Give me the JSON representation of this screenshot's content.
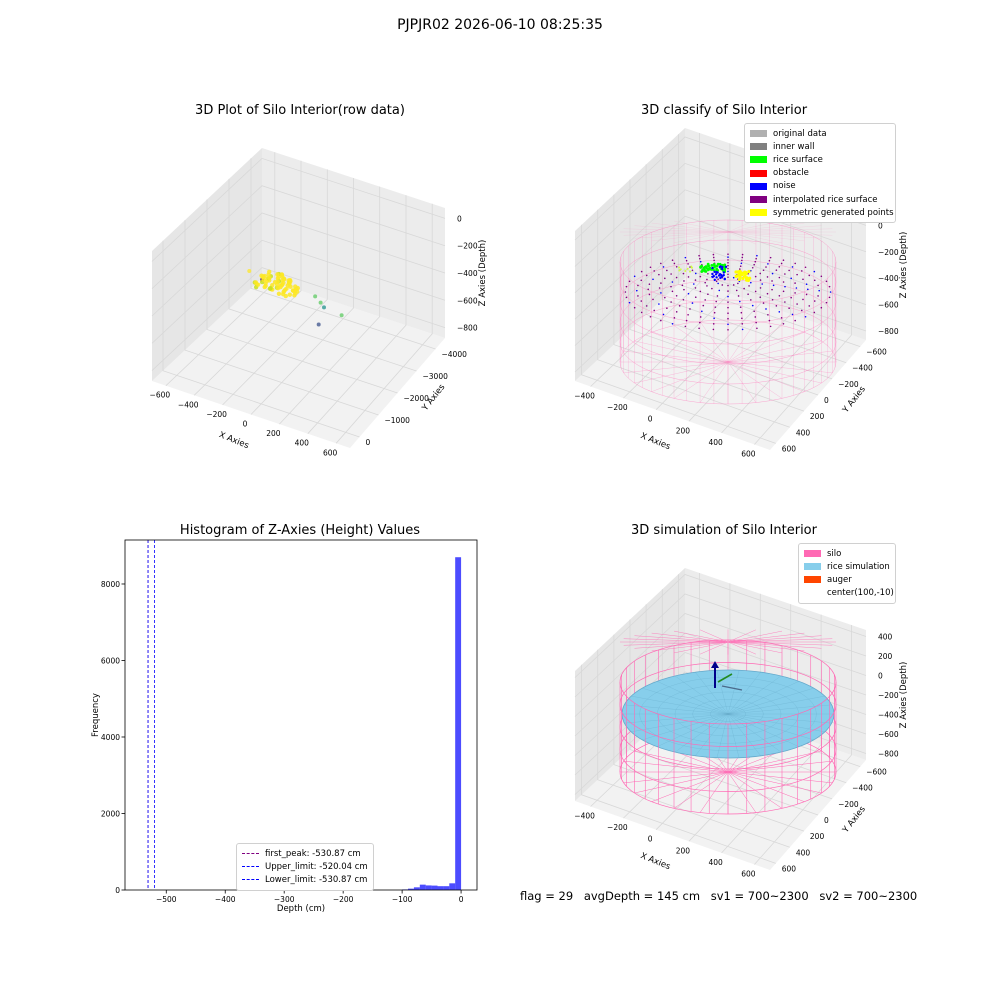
{
  "suptitle": "PJPJR02 2026-06-10 08:25:35",
  "panels": {
    "raw": {
      "title": "3D Plot of Silo Interior(row data)",
      "xlabel": "X Axies",
      "ylabel": "Y Axies",
      "zlabel": "Z Axies (Depth)",
      "xticks": [
        "−600",
        "−400",
        "−200",
        "0",
        "200",
        "400",
        "600"
      ],
      "yticks": [
        "0",
        "−1000",
        "−2000",
        "−3000",
        "−4000"
      ],
      "zticks": [
        "0",
        "−200",
        "−400",
        "−600",
        "−800"
      ]
    },
    "classify": {
      "title": "3D classify of Silo Interior",
      "xlabel": "X Axies",
      "ylabel": "Y Axies",
      "zlabel": "Z Axies (Depth)",
      "xticks": [
        "−400",
        "−200",
        "0",
        "200",
        "400",
        "600"
      ],
      "yticks": [
        "600",
        "400",
        "200",
        "0",
        "−200",
        "−400",
        "−600"
      ],
      "zticks": [
        "200",
        "0",
        "−200",
        "−400",
        "−600",
        "−800"
      ],
      "legend": [
        {
          "label": "original data",
          "color": "#b0b0b0"
        },
        {
          "label": "inner wall",
          "color": "#808080"
        },
        {
          "label": "rice surface",
          "color": "#00ff00"
        },
        {
          "label": "obstacle",
          "color": "#ff0000"
        },
        {
          "label": "noise",
          "color": "#0000ff"
        },
        {
          "label": "interpolated rice surface",
          "color": "#800080"
        },
        {
          "label": "symmetric generated points",
          "color": "#ffff00"
        }
      ]
    },
    "histogram": {
      "title": "Histogram of Z-Axies (Height) Values",
      "xlabel": "Depth (cm)",
      "ylabel": "Frequency",
      "legend": [
        {
          "label": "first_peak: -530.87 cm",
          "color": "#800080"
        },
        {
          "label": "Upper_limit: -520.04 cm",
          "color": "#0000ff"
        },
        {
          "label": "Lower_limit: -530.87 cm",
          "color": "#0000ff"
        }
      ]
    },
    "simulation": {
      "title": "3D simulation of Silo Interior",
      "xlabel": "X Axies",
      "ylabel": "Y Axies",
      "zlabel": "Z Axies (Depth)",
      "xticks": [
        "−400",
        "−200",
        "0",
        "200",
        "400",
        "600"
      ],
      "yticks": [
        "600",
        "400",
        "200",
        "0",
        "−200",
        "−400",
        "−600"
      ],
      "zticks": [
        "400",
        "200",
        "0",
        "−200",
        "−400",
        "−600",
        "−800"
      ],
      "legend": [
        {
          "label": "silo",
          "color": "#ff69b4"
        },
        {
          "label": "rice simulation",
          "color": "#87ceeb"
        },
        {
          "label": "auger",
          "color": "#ff4500"
        },
        {
          "label": "center(100,-10)",
          "color": ""
        }
      ]
    }
  },
  "footer": {
    "flag": "flag = 29",
    "avg_depth": "avgDepth = 145 cm",
    "sv1": "sv1 = 700~2300",
    "sv2": "sv2 = 700~2300"
  },
  "chart_data": [
    {
      "type": "scatter",
      "title": "3D Plot of Silo Interior(row data)",
      "xlabel": "X Axies",
      "ylabel": "Y Axies",
      "zlabel": "Z Axies (Depth)",
      "xlim": [
        -700,
        650
      ],
      "ylim": [
        -4500,
        500
      ],
      "zlim": [
        -900,
        50
      ],
      "points": [
        {
          "x": -650,
          "y": -4200,
          "z": -850
        },
        {
          "x": 120,
          "y": -1800,
          "z": -550
        },
        {
          "x": 200,
          "y": -1500,
          "z": -350
        },
        {
          "x": 180,
          "y": -1200,
          "z": -230
        },
        {
          "x": 420,
          "y": -800,
          "z": -220
        },
        {
          "x": 260,
          "y": -900,
          "z": -200
        },
        {
          "x": -150,
          "y": -300,
          "z": -20
        },
        {
          "x": 0,
          "y": -100,
          "z": -10
        },
        {
          "x": 100,
          "y": -50,
          "z": 0
        },
        {
          "x": 150,
          "y": 0,
          "z": 5
        }
      ]
    },
    {
      "type": "scatter",
      "title": "3D classify of Silo Interior",
      "xlabel": "X Axies",
      "ylabel": "Y Axies",
      "zlabel": "Z Axies (Depth)",
      "xlim": [
        -550,
        700
      ],
      "ylim": [
        -700,
        700
      ],
      "zlim": [
        -900,
        300
      ],
      "series": [
        {
          "name": "original data"
        },
        {
          "name": "inner wall"
        },
        {
          "name": "rice surface"
        },
        {
          "name": "obstacle"
        },
        {
          "name": "noise"
        },
        {
          "name": "interpolated rice surface"
        },
        {
          "name": "symmetric generated points"
        }
      ]
    },
    {
      "type": "bar",
      "title": "Histogram of Z-Axies (Height) Values",
      "xlabel": "Depth (cm)",
      "ylabel": "Frequency",
      "xlim": [
        -570,
        27
      ],
      "ylim": [
        0,
        9150
      ],
      "xticks": [
        -500,
        -400,
        -300,
        -200,
        -100,
        0
      ],
      "yticks": [
        0,
        2000,
        4000,
        6000,
        8000
      ],
      "bins": [
        {
          "from": -100,
          "to": -90,
          "value": 15
        },
        {
          "from": -90,
          "to": -80,
          "value": 35
        },
        {
          "from": -80,
          "to": -70,
          "value": 70
        },
        {
          "from": -70,
          "to": -60,
          "value": 140
        },
        {
          "from": -60,
          "to": -50,
          "value": 120
        },
        {
          "from": -50,
          "to": -40,
          "value": 115
        },
        {
          "from": -40,
          "to": -30,
          "value": 100
        },
        {
          "from": -30,
          "to": -20,
          "value": 100
        },
        {
          "from": -20,
          "to": -10,
          "value": 175
        },
        {
          "from": -10,
          "to": 0,
          "value": 8700
        }
      ],
      "vlines": [
        {
          "name": "first_peak: -530.87 cm",
          "x": -530.87
        },
        {
          "name": "Upper_limit: -520.04 cm",
          "x": -520.04
        },
        {
          "name": "Lower_limit: -530.87 cm",
          "x": -530.87
        }
      ]
    },
    {
      "type": "area",
      "title": "3D simulation of Silo Interior",
      "xlabel": "X Axies",
      "ylabel": "Y Axies",
      "zlabel": "Z Axies (Depth)",
      "xlim": [
        -550,
        700
      ],
      "ylim": [
        -700,
        700
      ],
      "zlim": [
        -900,
        450
      ],
      "series": [
        {
          "name": "silo"
        },
        {
          "name": "rice simulation"
        },
        {
          "name": "auger"
        },
        {
          "name": "center(100,-10)"
        }
      ]
    }
  ]
}
